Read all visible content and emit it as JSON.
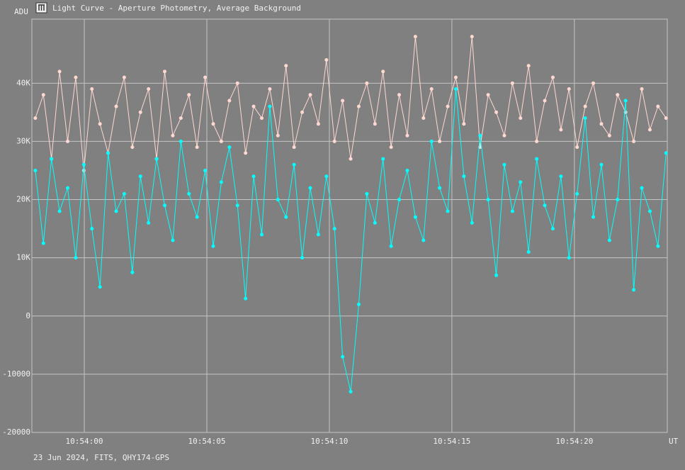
{
  "chart_data": {
    "type": "line",
    "title": "Light Curve - Aperture Photometry, Average Background",
    "ylabel": "ADU",
    "xlabel": "UT",
    "footer": "23 Jun 2024, FITS, QHY174-GPS",
    "x": [
      39238,
      39238.33,
      39238.66,
      39238.99,
      39239.32,
      39239.65,
      39239.98,
      39240.31,
      39240.64,
      39240.97,
      39241.3,
      39241.63,
      39241.96,
      39242.29,
      39242.62,
      39242.95,
      39243.28,
      39243.61,
      39243.94,
      39244.27,
      39244.6,
      39244.93,
      39245.26,
      39245.59,
      39245.92,
      39246.25,
      39246.58,
      39246.91,
      39247.24,
      39247.57,
      39247.9,
      39248.23,
      39248.56,
      39248.89,
      39249.22,
      39249.55,
      39249.88,
      39250.21,
      39250.54,
      39250.87,
      39251.2,
      39251.53,
      39251.86,
      39252.19,
      39252.52,
      39252.85,
      39253.18,
      39253.51,
      39253.84,
      39254.17,
      39254.5,
      39254.83,
      39255.16,
      39255.49,
      39255.82,
      39256.15,
      39256.48,
      39256.81,
      39257.14,
      39257.47,
      39257.8,
      39258.13,
      39258.46,
      39258.79,
      39259.12,
      39259.45,
      39259.78,
      39260.11,
      39260.44,
      39260.77,
      39261.1,
      39261.43,
      39261.76,
      39262.09,
      39262.42,
      39262.75,
      39263.08,
      39263.41,
      39263.74
    ],
    "series": [
      {
        "color": "#ffd8d2",
        "values": [
          34000,
          38000,
          27000,
          42000,
          30000,
          41000,
          25000,
          39000,
          33000,
          28000,
          36000,
          41000,
          29000,
          35000,
          39000,
          27000,
          42000,
          31000,
          34000,
          38000,
          29000,
          41000,
          33000,
          30000,
          37000,
          40000,
          28000,
          36000,
          34000,
          39000,
          31000,
          43000,
          29000,
          35000,
          38000,
          33000,
          44000,
          30000,
          37000,
          27000,
          36000,
          40000,
          33000,
          42000,
          29000,
          38000,
          31000,
          48000,
          34000,
          39000,
          30000,
          36000,
          41000,
          33000,
          48000,
          29000,
          38000,
          35000,
          31000,
          40000,
          34000,
          43000,
          30000,
          37000,
          41000,
          32000,
          39000,
          29000,
          36000,
          40000,
          33000,
          31000,
          38000,
          35000,
          30000,
          39000,
          32000,
          36000,
          34000
        ]
      },
      {
        "color": "#00ffff",
        "values": [
          25000,
          12500,
          27000,
          18000,
          22000,
          10000,
          26000,
          15000,
          5000,
          28000,
          18000,
          21000,
          7500,
          24000,
          16000,
          27000,
          19000,
          13000,
          30000,
          21000,
          17000,
          25000,
          12000,
          23000,
          29000,
          19000,
          3000,
          24000,
          14000,
          36000,
          20000,
          17000,
          26000,
          10000,
          22000,
          14000,
          24000,
          15000,
          -7000,
          -13000,
          2000,
          21000,
          16000,
          27000,
          12000,
          20000,
          25000,
          17000,
          13000,
          30000,
          22000,
          18000,
          39000,
          24000,
          16000,
          31000,
          20000,
          7000,
          26000,
          18000,
          23000,
          11000,
          27000,
          19000,
          15000,
          24000,
          10000,
          21000,
          34000,
          17000,
          26000,
          13000,
          20000,
          37000,
          4500,
          22000,
          18000,
          12000,
          28000
        ]
      }
    ],
    "xlim": [
      39237.86,
      39263.79
    ],
    "xticks": [
      {
        "value": 39240,
        "label": "10:54:00"
      },
      {
        "value": 39245,
        "label": "10:54:05"
      },
      {
        "value": 39250,
        "label": "10:54:10"
      },
      {
        "value": 39255,
        "label": "10:54:15"
      },
      {
        "value": 39260,
        "label": "10:54:20"
      }
    ],
    "ylim": [
      -20000,
      51000
    ],
    "yticks": [
      -20000,
      -10000,
      0,
      {
        "value": 10000,
        "label": "10K"
      },
      {
        "value": 20000,
        "label": "20K"
      },
      {
        "value": 30000,
        "label": "30K"
      },
      {
        "value": 40000,
        "label": "40K"
      }
    ],
    "grid": true
  }
}
